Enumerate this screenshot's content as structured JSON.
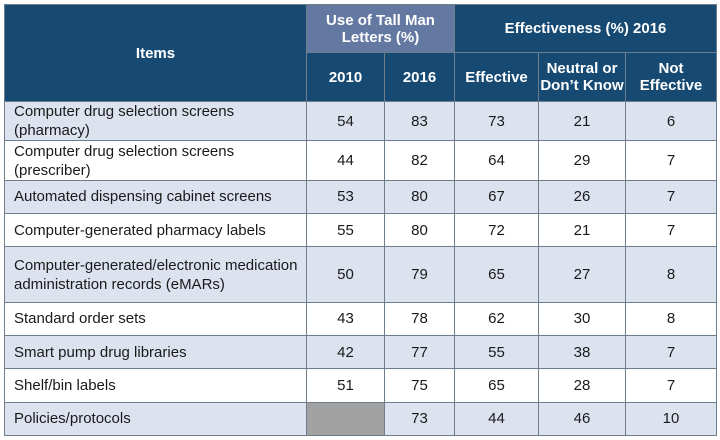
{
  "header": {
    "items_label": "Items",
    "use_group": "Use of Tall Man Letters (%)",
    "eff_group": "Effectiveness (%) 2016",
    "col_2010": "2010",
    "col_2016": "2016",
    "col_effective": "Effective",
    "col_neutral": "Neutral or Don’t Know",
    "col_not_effective": "Not Effective"
  },
  "rows": [
    {
      "item": "Computer drug selection screens (pharmacy)",
      "y2010": "54",
      "y2016": "83",
      "effective": "73",
      "neutral": "21",
      "not_effective": "6"
    },
    {
      "item": "Computer drug selection screens (prescriber)",
      "y2010": "44",
      "y2016": "82",
      "effective": "64",
      "neutral": "29",
      "not_effective": "7"
    },
    {
      "item": "Automated dispensing cabinet screens",
      "y2010": "53",
      "y2016": "80",
      "effective": "67",
      "neutral": "26",
      "not_effective": "7"
    },
    {
      "item": "Computer-generated pharmacy labels",
      "y2010": "55",
      "y2016": "80",
      "effective": "72",
      "neutral": "21",
      "not_effective": "7"
    },
    {
      "item": "Computer-generated/electronic medication administration records (eMARs)",
      "y2010": "50",
      "y2016": "79",
      "effective": "65",
      "neutral": "27",
      "not_effective": "8"
    },
    {
      "item": "Standard order sets",
      "y2010": "43",
      "y2016": "78",
      "effective": "62",
      "neutral": "30",
      "not_effective": "8"
    },
    {
      "item": "Smart pump drug libraries",
      "y2010": "42",
      "y2016": "77",
      "effective": "55",
      "neutral": "38",
      "not_effective": "7"
    },
    {
      "item": "Shelf/bin labels",
      "y2010": "51",
      "y2016": "75",
      "effective": "65",
      "neutral": "28",
      "not_effective": "7"
    },
    {
      "item": "Policies/protocols",
      "y2010": "",
      "y2016": "73",
      "effective": "44",
      "neutral": "46",
      "not_effective": "10"
    }
  ]
}
